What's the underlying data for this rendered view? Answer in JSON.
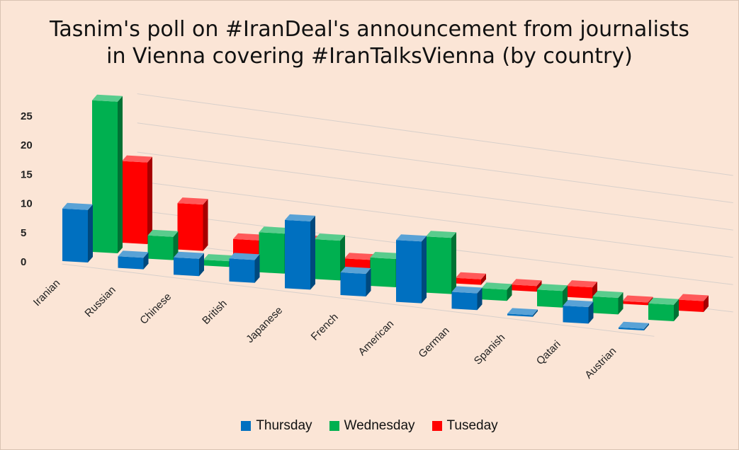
{
  "chart_data": {
    "type": "bar",
    "title_line1": "Tasnim's poll on #IranDeal's announcement from journalists",
    "title_line2": "in Vienna covering #IranTalksVienna (by country)",
    "categories": [
      "Iranian",
      "Russian",
      "Chinese",
      "British",
      "Japanese",
      "French",
      "American",
      "German",
      "Spanish",
      "Qatari",
      "Austrian"
    ],
    "series": [
      {
        "name": "Thursday",
        "color": "#0070c0",
        "values": [
          9,
          2,
          3,
          4,
          12,
          4,
          11,
          3,
          0.3,
          3,
          0.3
        ]
      },
      {
        "name": "Wednesday",
        "color": "#00b050",
        "values": [
          26,
          4,
          1,
          7,
          7,
          5,
          10,
          2,
          3,
          3,
          3
        ]
      },
      {
        "name": "Tuseday",
        "color": "#ff0000",
        "values": [
          14,
          8,
          3,
          4,
          2,
          3,
          1,
          1,
          2,
          0.5,
          2
        ]
      }
    ],
    "yticks": [
      0,
      5,
      10,
      15,
      20,
      25
    ],
    "ylim": [
      0,
      25
    ],
    "grid": true,
    "legend_position": "bottom"
  }
}
